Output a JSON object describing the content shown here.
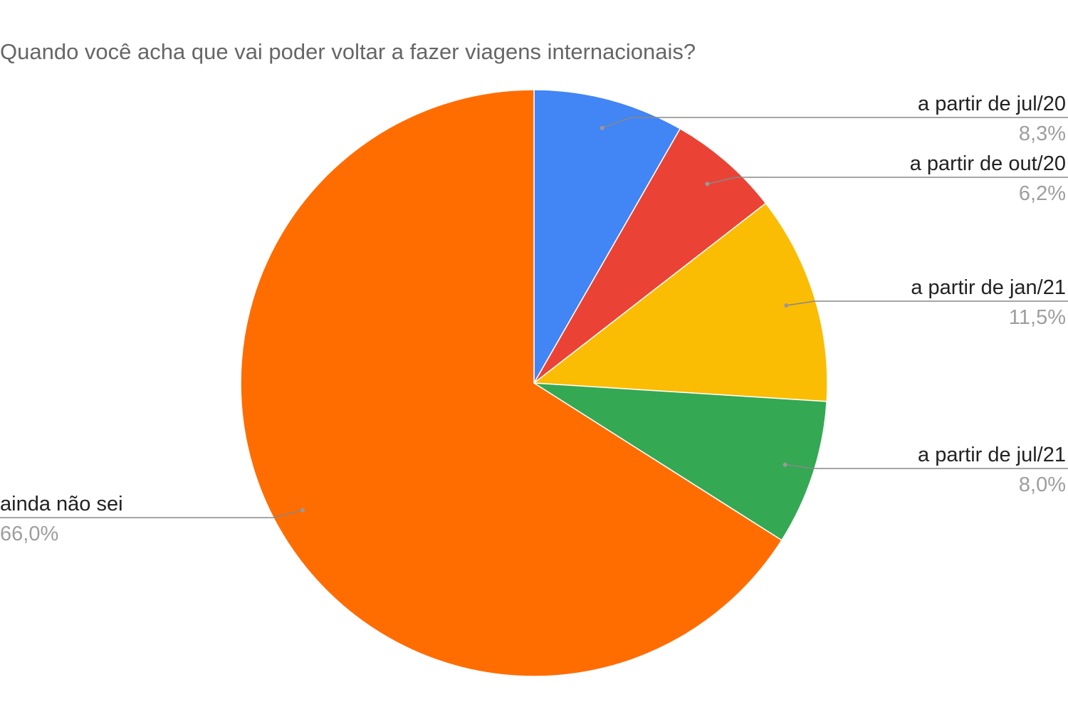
{
  "chart_data": {
    "type": "pie",
    "title": "Quando você acha que vai poder voltar a fazer viagens internacionais?",
    "categories": [
      "a partir de jul/20",
      "a partir de out/20",
      "a partir de jan/21",
      "a partir de jul/21",
      "ainda não sei"
    ],
    "values": [
      8.3,
      6.2,
      11.5,
      8.0,
      66.0
    ],
    "value_labels": [
      "8,3%",
      "6,2%",
      "11,5%",
      "8,0%",
      "66,0%"
    ],
    "colors": [
      "#4285f4",
      "#ea4335",
      "#fbbc04",
      "#34a853",
      "#ff6d01"
    ]
  }
}
